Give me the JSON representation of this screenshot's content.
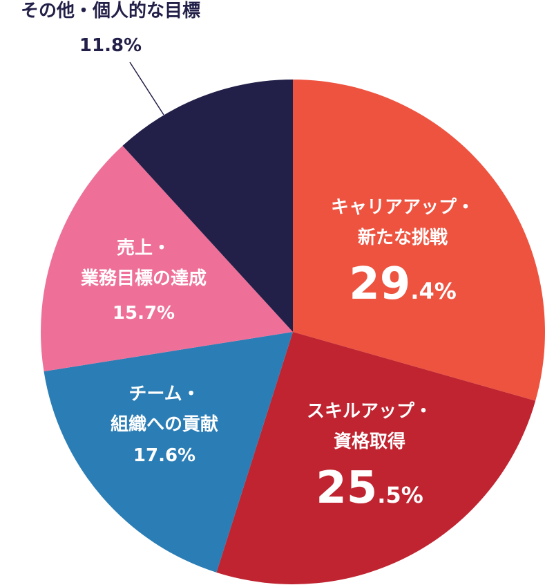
{
  "chart_data": {
    "type": "pie",
    "categories": [
      "キャリアアップ・\n新たな挑戦",
      "スキルアップ・\n資格取得",
      "チーム・\n組織への貢献",
      "売上・\n業務目標の達成",
      "その他・個人的な目標"
    ],
    "values": [
      29.4,
      25.5,
      17.6,
      15.7,
      11.8
    ],
    "value_labels": [
      "29.4%",
      "25.5%",
      "17.6%",
      "15.7%",
      "11.8%"
    ],
    "colors": [
      "#ee5340",
      "#bf2430",
      "#2a7db5",
      "#ee7099",
      "#221f48"
    ]
  }
}
